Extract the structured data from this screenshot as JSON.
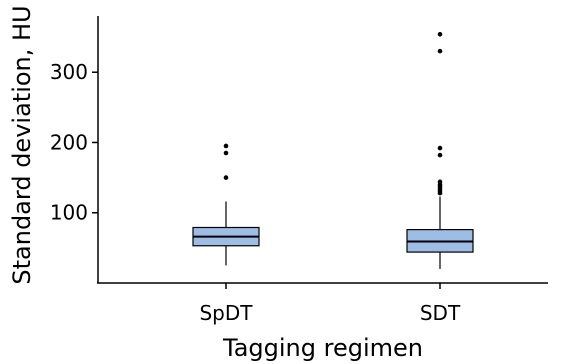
{
  "chart_data": {
    "type": "box",
    "title": "",
    "xlabel": "Tagging regimen",
    "ylabel": "Standard deviation, HU",
    "categories": [
      "SpDT",
      "SDT"
    ],
    "ylim": [
      0,
      380
    ],
    "yticks": [
      100,
      200,
      300
    ],
    "grid": false,
    "legend": "none",
    "box_fill_color": "#9dbde4",
    "boxes": [
      {
        "category": "SpDT",
        "whisker_low": 25,
        "q1": 53,
        "median": 66,
        "q3": 79,
        "whisker_high": 116,
        "outliers": [
          150,
          185,
          195
        ]
      },
      {
        "category": "SDT",
        "whisker_low": 20,
        "q1": 44,
        "median": 59,
        "q3": 76,
        "whisker_high": 123,
        "outliers": [
          128,
          131,
          134,
          137,
          140,
          144,
          182,
          192,
          330,
          354
        ]
      }
    ]
  }
}
